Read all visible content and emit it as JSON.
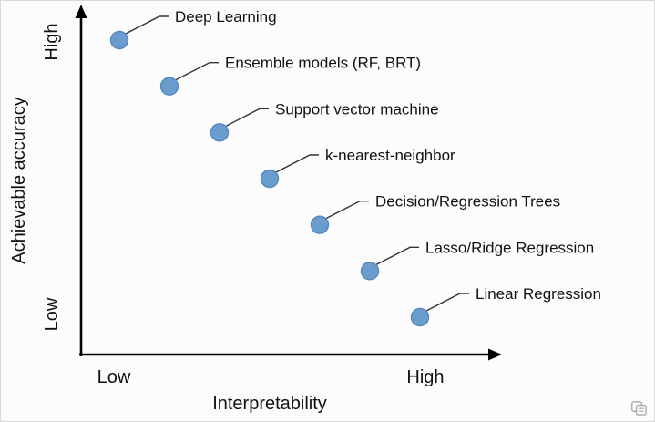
{
  "chart_data": {
    "type": "scatter",
    "title": "",
    "xlabel": "Interpretability",
    "ylabel": "Achievable accuracy",
    "x_tick_labels": [
      "Low",
      "High"
    ],
    "y_tick_labels": [
      "High",
      "Low"
    ],
    "x_axis_meaning": "Interpretability from Low to High",
    "y_axis_meaning": "Achievable accuracy from Low to High",
    "grid": false,
    "legend_position": "none",
    "point_color": "#6b9cce",
    "point_stroke_color": "#5688bb",
    "xlim": [
      0,
      8
    ],
    "ylim": [
      0,
      8
    ],
    "points": [
      {
        "label": "Deep Learning",
        "x": 1,
        "y": 7
      },
      {
        "label": "Ensemble models (RF, BRT)",
        "x": 2,
        "y": 6
      },
      {
        "label": "Support vector machine",
        "x": 3,
        "y": 5
      },
      {
        "label": "k-nearest-neighbor",
        "x": 4,
        "y": 4
      },
      {
        "label": "Decision/Regression Trees",
        "x": 5,
        "y": 3
      },
      {
        "label": "Lasso/Ridge Regression",
        "x": 6,
        "y": 2
      },
      {
        "label": "Linear Regression",
        "x": 7,
        "y": 1
      }
    ]
  },
  "watermark": {
    "icon": "translate-badge-icon",
    "color": "#8a8f94"
  }
}
